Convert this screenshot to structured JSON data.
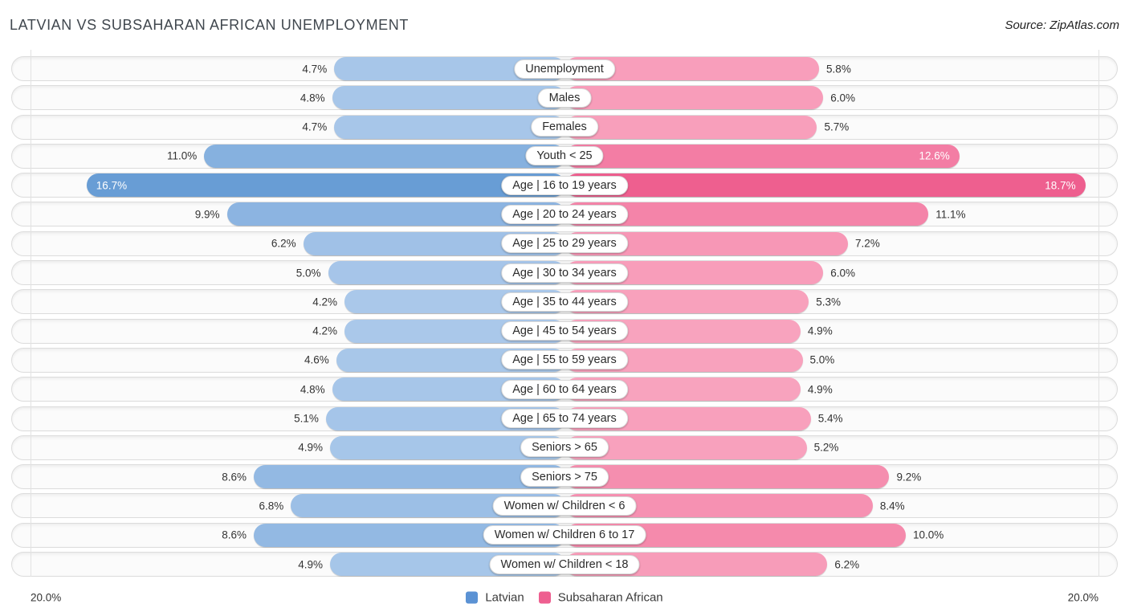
{
  "header": {
    "title": "LATVIAN VS SUBSAHARAN AFRICAN UNEMPLOYMENT",
    "source": "Source: ZipAtlas.com"
  },
  "axis": {
    "left_max_label": "20.0%",
    "right_max_label": "20.0%",
    "max_value": 20.0
  },
  "legend": [
    {
      "label": "Latvian",
      "color": "#5b92d4"
    },
    {
      "label": "Subsaharan African",
      "color": "#ee5f90"
    }
  ],
  "colors": {
    "blue_light": "#aac8ea",
    "blue_dark": "#5e96d2",
    "pink_light": "#f9a6c0",
    "pink_dark": "#ee5f8f",
    "track": "#fbfbfb",
    "track_border": "#dcdcdc",
    "gridline": "#e2e2e2"
  },
  "chart_data": {
    "type": "bar",
    "orientation": "horizontal-diverging",
    "title": "LATVIAN VS SUBSAHARAN AFRICAN UNEMPLOYMENT",
    "xlim": [
      0,
      20
    ],
    "legend_position": "bottom-center",
    "grid": "vertical-end-lines",
    "categories": [
      "Unemployment",
      "Males",
      "Females",
      "Youth < 25",
      "Age | 16 to 19 years",
      "Age | 20 to 24 years",
      "Age | 25 to 29 years",
      "Age | 30 to 34 years",
      "Age | 35 to 44 years",
      "Age | 45 to 54 years",
      "Age | 55 to 59 years",
      "Age | 60 to 64 years",
      "Age | 65 to 74 years",
      "Seniors > 65",
      "Seniors > 75",
      "Women w/ Children < 6",
      "Women w/ Children 6 to 17",
      "Women w/ Children < 18"
    ],
    "series": [
      {
        "name": "Latvian",
        "values": [
          4.7,
          4.8,
          4.7,
          11.0,
          16.7,
          9.9,
          6.2,
          5.0,
          4.2,
          4.2,
          4.6,
          4.8,
          5.1,
          4.9,
          8.6,
          6.8,
          8.6,
          4.9
        ],
        "value_labels": [
          "4.7%",
          "4.8%",
          "4.7%",
          "11.0%",
          "16.7%",
          "9.9%",
          "6.2%",
          "5.0%",
          "4.2%",
          "4.2%",
          "4.6%",
          "4.8%",
          "5.1%",
          "4.9%",
          "8.6%",
          "6.8%",
          "8.6%",
          "4.9%"
        ]
      },
      {
        "name": "Subsaharan African",
        "values": [
          5.8,
          6.0,
          5.7,
          12.6,
          18.7,
          11.1,
          7.2,
          6.0,
          5.3,
          4.9,
          5.0,
          4.9,
          5.4,
          5.2,
          9.2,
          8.4,
          10.0,
          6.2
        ],
        "value_labels": [
          "5.8%",
          "6.0%",
          "5.7%",
          "12.6%",
          "18.7%",
          "11.1%",
          "7.2%",
          "6.0%",
          "5.3%",
          "4.9%",
          "5.0%",
          "4.9%",
          "5.4%",
          "5.2%",
          "9.2%",
          "8.4%",
          "10.0%",
          "6.2%"
        ]
      }
    ]
  }
}
